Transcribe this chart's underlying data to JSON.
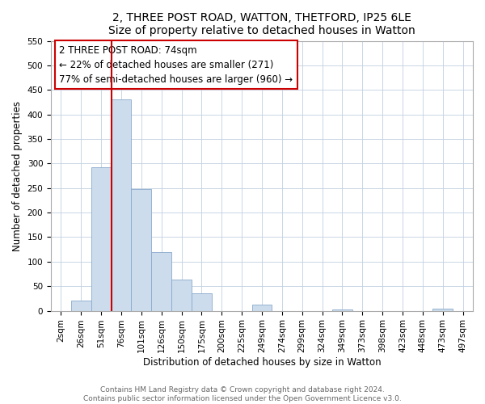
{
  "title": "2, THREE POST ROAD, WATTON, THETFORD, IP25 6LE",
  "subtitle": "Size of property relative to detached houses in Watton",
  "xlabel": "Distribution of detached houses by size in Watton",
  "ylabel": "Number of detached properties",
  "bar_labels": [
    "2sqm",
    "26sqm",
    "51sqm",
    "76sqm",
    "101sqm",
    "126sqm",
    "150sqm",
    "175sqm",
    "200sqm",
    "225sqm",
    "249sqm",
    "274sqm",
    "299sqm",
    "324sqm",
    "349sqm",
    "373sqm",
    "398sqm",
    "423sqm",
    "448sqm",
    "473sqm",
    "497sqm"
  ],
  "bar_heights": [
    0,
    20,
    293,
    430,
    248,
    120,
    63,
    36,
    0,
    0,
    12,
    0,
    0,
    0,
    3,
    0,
    0,
    0,
    0,
    5,
    0
  ],
  "bar_color": "#ccdcec",
  "bar_edge_color": "#88aacc",
  "vline_x_index": 3,
  "vline_color": "#cc0000",
  "ylim": [
    0,
    550
  ],
  "yticks": [
    0,
    50,
    100,
    150,
    200,
    250,
    300,
    350,
    400,
    450,
    500,
    550
  ],
  "annotation_title": "2 THREE POST ROAD: 74sqm",
  "annotation_line1": "← 22% of detached houses are smaller (271)",
  "annotation_line2": "77% of semi-detached houses are larger (960) →",
  "footer_line1": "Contains HM Land Registry data © Crown copyright and database right 2024.",
  "footer_line2": "Contains public sector information licensed under the Open Government Licence v3.0.",
  "title_fontsize": 10,
  "axis_label_fontsize": 8.5,
  "tick_fontsize": 7.5,
  "annotation_fontsize": 8.5,
  "footer_fontsize": 6.5
}
